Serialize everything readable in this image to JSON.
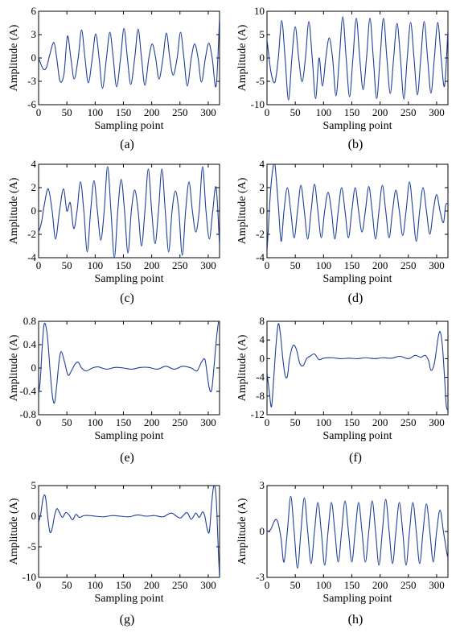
{
  "figure": {
    "series_color": "#1f3f99",
    "axis_color": "#000000"
  },
  "chart_data": [
    {
      "type": "line",
      "panel_label": "(a)",
      "xlabel": "Sampling point",
      "ylabel": "Amplitude (A)",
      "xlim": [
        0,
        320
      ],
      "ylim": [
        -6,
        6
      ],
      "xticks": [
        0,
        50,
        100,
        150,
        200,
        250,
        300
      ],
      "yticks": [
        -6,
        -3,
        0,
        3,
        6
      ],
      "grid": false,
      "series": [
        {
          "x": [
            0,
            8,
            14,
            20,
            27,
            32,
            38,
            45,
            51,
            57,
            63,
            70,
            76,
            82,
            88,
            95,
            101,
            107,
            113,
            120,
            126,
            132,
            138,
            145,
            151,
            157,
            163,
            170,
            176,
            182,
            188,
            195,
            201,
            207,
            213,
            220,
            226,
            232,
            238,
            245,
            251,
            257,
            263,
            270,
            276,
            282,
            288,
            295,
            301,
            307,
            314,
            320
          ],
          "y": [
            0,
            -1.4,
            -1.2,
            0.5,
            2,
            0,
            -3,
            -2,
            2.8,
            0,
            -2.7,
            0,
            3.6,
            0,
            -3.2,
            0,
            3.1,
            0,
            -3.9,
            0,
            3.3,
            0,
            -3.7,
            0,
            3.8,
            0,
            -3.4,
            0,
            3.7,
            0,
            -3.5,
            0,
            1.8,
            0,
            -2.7,
            0,
            3.2,
            0,
            -2.2,
            0,
            3.3,
            0,
            -3.6,
            0,
            1.8,
            0,
            -3.1,
            0,
            1.9,
            0,
            -3.6,
            5.2
          ]
        }
      ]
    },
    {
      "type": "line",
      "panel_label": "(b)",
      "xlabel": "Sampling point",
      "ylabel": "Amplitude (A)",
      "xlim": [
        0,
        320
      ],
      "ylim": [
        -10,
        10
      ],
      "xticks": [
        0,
        50,
        100,
        150,
        200,
        250,
        300
      ],
      "yticks": [
        -10,
        -5,
        0,
        5,
        10
      ],
      "grid": false,
      "series": [
        {
          "x": [
            0,
            7,
            14,
            20,
            26,
            32,
            38,
            44,
            50,
            56,
            62,
            68,
            74,
            80,
            86,
            92,
            98,
            104,
            110,
            116,
            122,
            128,
            134,
            140,
            146,
            152,
            158,
            164,
            170,
            176,
            182,
            188,
            194,
            200,
            206,
            212,
            218,
            224,
            230,
            236,
            242,
            248,
            254,
            260,
            266,
            272,
            278,
            284,
            290,
            296,
            302,
            308,
            314,
            320
          ],
          "y": [
            4,
            -3,
            -5.2,
            0,
            8,
            0,
            -9,
            0,
            6.7,
            0,
            -5.1,
            0,
            7.8,
            0,
            -8.7,
            0,
            -6,
            0,
            4.3,
            0,
            -8.1,
            0,
            8.8,
            0,
            -8.3,
            0,
            8.5,
            0,
            -6.8,
            0,
            8.5,
            0,
            -8.7,
            0,
            8.5,
            0,
            -7.6,
            0,
            7.4,
            0,
            -8.8,
            0,
            7.6,
            0,
            -7.9,
            0,
            7.8,
            0,
            -7.5,
            0,
            7.6,
            0,
            -6,
            6
          ]
        }
      ]
    },
    {
      "type": "line",
      "panel_label": "(c)",
      "xlabel": "Sampling point",
      "ylabel": "Amplitude (A)",
      "xlim": [
        0,
        320
      ],
      "ylim": [
        -4,
        4
      ],
      "xticks": [
        0,
        50,
        100,
        150,
        200,
        250,
        300
      ],
      "yticks": [
        -4,
        -2,
        0,
        2,
        4
      ],
      "grid": false,
      "series": [
        {
          "x": [
            0,
            5,
            10,
            17,
            24,
            30,
            37,
            44,
            50,
            56,
            62,
            68,
            74,
            80,
            86,
            92,
            98,
            104,
            110,
            116,
            122,
            128,
            134,
            140,
            146,
            152,
            158,
            164,
            170,
            176,
            182,
            188,
            194,
            200,
            206,
            212,
            218,
            224,
            230,
            236,
            242,
            248,
            254,
            260,
            266,
            272,
            278,
            284,
            290,
            296,
            302,
            308,
            314,
            320
          ],
          "y": [
            -1.8,
            -1,
            0.5,
            1.9,
            0,
            -2.4,
            0,
            1.9,
            0,
            0.7,
            -1.5,
            0,
            2.5,
            0,
            -3.5,
            0,
            2.6,
            0,
            -2.5,
            0,
            3.8,
            0,
            -4,
            0,
            2.7,
            0,
            -3.6,
            0,
            1.8,
            0,
            -3,
            0,
            3.6,
            0,
            -2.8,
            0,
            3.6,
            0,
            -3.5,
            0,
            1.7,
            0,
            -3.8,
            0,
            2.5,
            0,
            -1.8,
            0,
            3.8,
            0,
            -2.4,
            0,
            2,
            -3
          ]
        }
      ]
    },
    {
      "type": "line",
      "panel_label": "(d)",
      "xlabel": "Sampling point",
      "ylabel": "Amplitude (A)",
      "xlim": [
        0,
        320
      ],
      "ylim": [
        -4,
        4
      ],
      "xticks": [
        0,
        50,
        100,
        150,
        200,
        250,
        300
      ],
      "yticks": [
        -4,
        -2,
        0,
        2,
        4
      ],
      "grid": false,
      "series": [
        {
          "x": [
            0,
            3,
            6,
            10,
            14,
            20,
            25,
            30,
            36,
            42,
            48,
            54,
            60,
            66,
            72,
            78,
            84,
            90,
            96,
            102,
            108,
            114,
            120,
            126,
            132,
            138,
            144,
            150,
            156,
            162,
            168,
            174,
            180,
            186,
            192,
            198,
            204,
            210,
            216,
            222,
            228,
            234,
            240,
            246,
            252,
            258,
            264,
            270,
            276,
            282,
            288,
            294,
            300,
            306,
            312,
            316,
            320
          ],
          "y": [
            -3.5,
            -1,
            1.5,
            3.5,
            4,
            0.5,
            -2.6,
            0,
            2,
            0,
            -2.3,
            0,
            2.2,
            0,
            -2.4,
            0,
            2.3,
            0,
            -2.3,
            0,
            1.6,
            0,
            -2.4,
            0,
            2,
            0,
            -2.3,
            0,
            2,
            0,
            -1.8,
            0,
            2.1,
            0,
            -2.4,
            0,
            2.2,
            0,
            -2.3,
            0,
            1.8,
            0,
            -2.1,
            0,
            2.5,
            0,
            -2.6,
            0,
            2,
            0,
            -2,
            0,
            1.4,
            0,
            -1,
            0.5,
            0.6
          ]
        }
      ]
    },
    {
      "type": "line",
      "panel_label": "(e)",
      "xlabel": "Sampling point",
      "ylabel": "Amplitude (A)",
      "xlim": [
        0,
        320
      ],
      "ylim": [
        -0.8,
        0.8
      ],
      "xticks": [
        0,
        50,
        100,
        150,
        200,
        250,
        300
      ],
      "yticks": [
        -0.8,
        -0.4,
        0,
        0.4,
        0.8
      ],
      "grid": false,
      "series": [
        {
          "x": [
            0,
            3,
            6,
            9,
            12,
            16,
            20,
            24,
            28,
            32,
            36,
            40,
            46,
            52,
            58,
            64,
            70,
            76,
            84,
            95,
            105,
            120,
            135,
            150,
            165,
            180,
            195,
            210,
            225,
            240,
            255,
            270,
            280,
            288,
            294,
            298,
            302,
            306,
            310,
            314,
            318,
            320
          ],
          "y": [
            -0.45,
            -0.2,
            0.3,
            0.7,
            0.75,
            0.5,
            0,
            -0.45,
            -0.6,
            -0.3,
            0.1,
            0.28,
            0.1,
            -0.12,
            -0.05,
            0.06,
            0.1,
            0,
            -0.05,
            0,
            0.02,
            -0.02,
            0.01,
            0,
            -0.02,
            0.01,
            0.01,
            -0.02,
            0.03,
            -0.02,
            0.03,
            0,
            -0.05,
            0.1,
            0.15,
            -0.1,
            -0.35,
            -0.38,
            0,
            0.45,
            0.78,
            0.8
          ]
        }
      ]
    },
    {
      "type": "line",
      "panel_label": "(f)",
      "xlabel": "Sampling point",
      "ylabel": "Amplitude (A)",
      "xlim": [
        0,
        320
      ],
      "ylim": [
        -12,
        8
      ],
      "xticks": [
        0,
        50,
        100,
        150,
        200,
        250,
        300
      ],
      "yticks": [
        -12,
        -8,
        -4,
        0,
        4,
        8
      ],
      "grid": false,
      "series": [
        {
          "x": [
            0,
            4,
            8,
            12,
            16,
            20,
            24,
            28,
            32,
            36,
            40,
            46,
            52,
            58,
            64,
            70,
            76,
            84,
            92,
            100,
            115,
            130,
            145,
            160,
            175,
            190,
            205,
            220,
            235,
            250,
            262,
            272,
            280,
            286,
            290,
            296,
            302,
            306,
            310,
            314,
            317,
            320
          ],
          "y": [
            -3,
            -7,
            -10.3,
            -4,
            3,
            7.5,
            5,
            0,
            -3.5,
            -3.8,
            0,
            2.8,
            2,
            -1,
            -1.5,
            0,
            0.5,
            1,
            -0.2,
            0.1,
            0.2,
            0,
            0.1,
            0,
            0.2,
            0,
            0.2,
            0.1,
            0.5,
            0,
            0.7,
            0.3,
            0.7,
            -0.5,
            -2.5,
            -1,
            4,
            5.8,
            3,
            -4,
            -10,
            -11
          ]
        }
      ]
    },
    {
      "type": "line",
      "panel_label": "(g)",
      "xlabel": "Sampling point",
      "ylabel": "Amplitude (A)",
      "xlim": [
        0,
        320
      ],
      "ylim": [
        -10,
        5
      ],
      "xticks": [
        0,
        50,
        100,
        150,
        200,
        250,
        300
      ],
      "yticks": [
        -10,
        -5,
        0,
        5
      ],
      "grid": false,
      "series": [
        {
          "x": [
            0,
            4,
            8,
            12,
            16,
            20,
            24,
            28,
            32,
            36,
            42,
            48,
            54,
            60,
            66,
            72,
            80,
            90,
            100,
            115,
            130,
            145,
            160,
            175,
            190,
            205,
            220,
            235,
            250,
            262,
            270,
            278,
            284,
            290,
            294,
            298,
            302,
            306,
            310,
            314,
            318,
            320
          ],
          "y": [
            -1,
            0.5,
            3,
            3.2,
            0,
            -2.6,
            -2,
            0,
            1.2,
            0.8,
            -0.2,
            0.6,
            0.2,
            -0.6,
            0.3,
            -0.2,
            0.1,
            0.1,
            0,
            -0.1,
            0.1,
            0,
            -0.1,
            0.2,
            0,
            0.1,
            -0.1,
            0.5,
            -0.3,
            0.6,
            -0.5,
            0.5,
            -0.2,
            0.7,
            0,
            -2,
            -2.5,
            2,
            5,
            3,
            -6,
            -10
          ]
        }
      ]
    },
    {
      "type": "line",
      "panel_label": "(h)",
      "xlabel": "Sampling point",
      "ylabel": "Amplitude (A)",
      "xlim": [
        0,
        320
      ],
      "ylim": [
        -3,
        3
      ],
      "xticks": [
        0,
        50,
        100,
        150,
        200,
        250,
        300
      ],
      "yticks": [
        -3,
        0,
        3
      ],
      "grid": false,
      "series": [
        {
          "x": [
            0,
            6,
            12,
            16,
            20,
            25,
            30,
            36,
            42,
            48,
            54,
            60,
            66,
            72,
            78,
            84,
            90,
            96,
            102,
            108,
            114,
            120,
            126,
            132,
            138,
            144,
            150,
            156,
            162,
            168,
            174,
            180,
            186,
            192,
            198,
            204,
            210,
            216,
            222,
            228,
            234,
            240,
            246,
            252,
            258,
            264,
            270,
            276,
            282,
            288,
            294,
            300,
            306,
            312,
            318,
            320
          ],
          "y": [
            0,
            0.1,
            0.6,
            0.8,
            0.5,
            -0.5,
            -2,
            0,
            2.3,
            0,
            -2.4,
            0,
            2.2,
            0,
            -2.1,
            0,
            1.9,
            0,
            -2.2,
            0,
            1.9,
            0,
            -2,
            0,
            2,
            0,
            -2,
            0,
            1.9,
            0,
            -2,
            0,
            2,
            0,
            -2.2,
            0,
            2.1,
            0,
            -2.1,
            0,
            1.9,
            0,
            -2.2,
            0,
            1.9,
            0,
            -2.1,
            0,
            1.8,
            0,
            -2,
            0,
            1.4,
            0,
            -1.4,
            -1.7
          ]
        }
      ]
    }
  ]
}
